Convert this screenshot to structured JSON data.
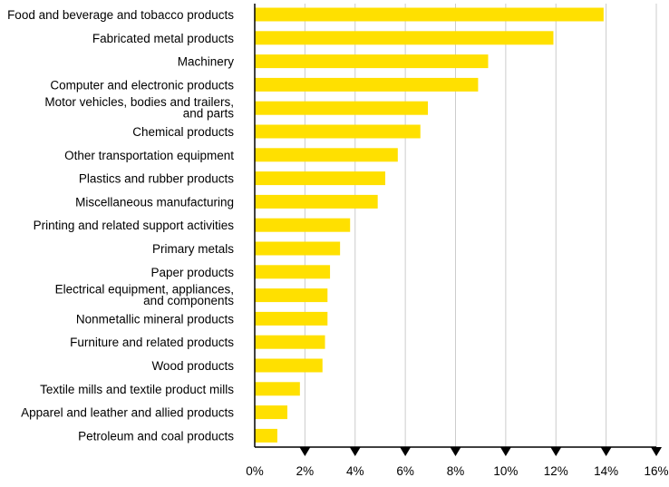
{
  "chart_data": {
    "type": "bar",
    "orientation": "horizontal",
    "categories": [
      [
        "Food and beverage and tobacco products"
      ],
      [
        "Fabricated metal products"
      ],
      [
        "Machinery"
      ],
      [
        "Computer and electronic products"
      ],
      [
        "Motor vehicles, bodies and trailers,",
        "and parts"
      ],
      [
        "Chemical products"
      ],
      [
        "Other transportation equipment"
      ],
      [
        "Plastics and rubber products"
      ],
      [
        "Miscellaneous manufacturing"
      ],
      [
        "Printing and related support activities"
      ],
      [
        "Primary metals"
      ],
      [
        "Paper products"
      ],
      [
        "Electrical equipment, appliances,",
        "and components"
      ],
      [
        "Nonmetallic mineral products"
      ],
      [
        "Furniture and related products"
      ],
      [
        "Wood products"
      ],
      [
        "Textile mills and textile product mills"
      ],
      [
        "Apparel and leather and allied products"
      ],
      [
        "Petroleum and coal products"
      ]
    ],
    "values": [
      13.9,
      11.9,
      9.3,
      8.9,
      6.9,
      6.6,
      5.7,
      5.2,
      4.9,
      3.8,
      3.4,
      3.0,
      2.9,
      2.9,
      2.8,
      2.7,
      1.8,
      1.3,
      0.9
    ],
    "xlim": [
      0,
      16
    ],
    "x_ticks": [
      "0%",
      "2%",
      "4%",
      "6%",
      "8%",
      "10%",
      "12%",
      "14%",
      "16%"
    ],
    "title": "",
    "xlabel": "",
    "ylabel": "",
    "grid": "vertical",
    "legend": "none",
    "colors": {
      "bar": "#FFE000",
      "grid": "#cccccc",
      "axis": "#000000"
    }
  }
}
